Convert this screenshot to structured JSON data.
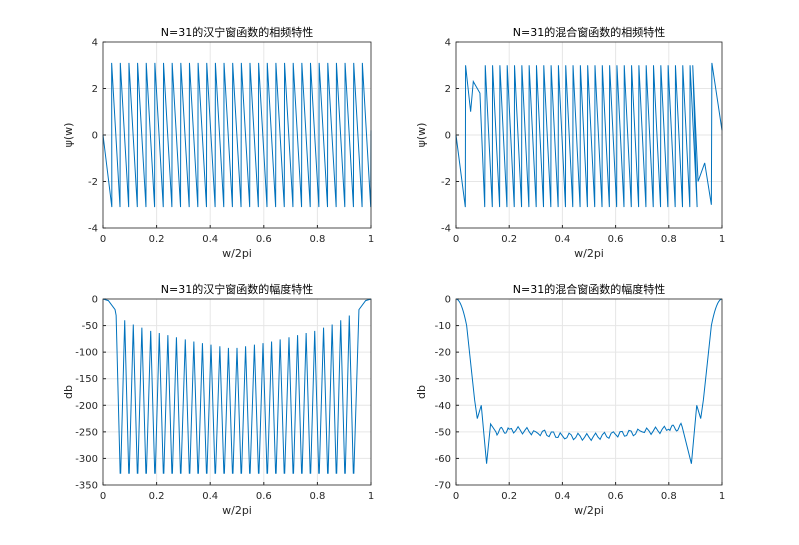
{
  "chart_data": [
    {
      "type": "line",
      "title": "N=31的汉宁窗函数的相频特性",
      "xlabel": "w/2pi",
      "ylabel": "ψ(w)",
      "xlim": [
        0,
        1
      ],
      "ylim": [
        -4,
        4
      ],
      "xticks": [
        "0",
        "0.2",
        "0.4",
        "0.6",
        "0.8",
        "1"
      ],
      "yticks": [
        "-4",
        "-2",
        "0",
        "2",
        "4"
      ],
      "grid": true,
      "series": [
        {
          "color": "#0072bd",
          "note_x": [
            0,
            0.033,
            0.065,
            0.097,
            0.129,
            0.161,
            0.194,
            0.226,
            0.258,
            0.29,
            0.323,
            0.355,
            0.387,
            0.419,
            0.452,
            0.484,
            0.516,
            0.548,
            0.581,
            0.613,
            0.645,
            0.677,
            0.71,
            0.742,
            0.774,
            0.806,
            0.839,
            0.871,
            0.903,
            0.935,
            0.968,
            1
          ],
          "y_peak": 3.1,
          "y_trough": -3.1
        }
      ]
    },
    {
      "type": "line",
      "title": "N=31的混合窗函数的相频特性",
      "xlabel": "w/2pi",
      "ylabel": "ψ(w)",
      "xlim": [
        0,
        1
      ],
      "ylim": [
        -4,
        4
      ],
      "xticks": [
        "0",
        "0.2",
        "0.4",
        "0.6",
        "0.8",
        "1"
      ],
      "yticks": [
        "-4",
        "-2",
        "0",
        "2",
        "4"
      ],
      "grid": true,
      "series": [
        {
          "color": "#0072bd",
          "y_peak": 3.0,
          "y_trough": -3.1
        }
      ]
    },
    {
      "type": "line",
      "title": "N=31的汉宁窗函数的幅度特性",
      "xlabel": "w/2pi",
      "ylabel": "db",
      "xlim": [
        0,
        1
      ],
      "ylim": [
        -350,
        0
      ],
      "xticks": [
        "0",
        "0.2",
        "0.4",
        "0.6",
        "0.8",
        "1"
      ],
      "yticks": [
        "0",
        "-50",
        "-100",
        "-150",
        "-200",
        "-250",
        "-300",
        "-350"
      ],
      "grid": true,
      "series": [
        {
          "color": "#0072bd",
          "null_x": [
            0.065,
            0.097,
            0.129,
            0.161,
            0.194,
            0.226,
            0.258,
            0.29,
            0.323,
            0.355,
            0.387,
            0.419,
            0.452,
            0.484,
            0.516,
            0.548,
            0.581,
            0.613,
            0.645,
            0.677,
            0.71,
            0.742,
            0.774,
            0.806,
            0.839,
            0.871,
            0.903,
            0.935
          ],
          "null_depth": -328,
          "sidelobe_peak": [
            -31,
            -40,
            -48,
            -54,
            -60,
            -64,
            -68,
            -72,
            -76,
            -80,
            -83,
            -86,
            -89,
            -92,
            -92,
            -89,
            -86,
            -83,
            -80,
            -76,
            -72,
            -68,
            -64,
            -60,
            -54,
            -48,
            -40,
            -31
          ]
        }
      ]
    },
    {
      "type": "line",
      "title": "N=31的混合窗函数的幅度特性",
      "xlabel": "w/2pi",
      "ylabel": "db",
      "xlim": [
        0,
        1
      ],
      "ylim": [
        -70,
        0
      ],
      "xticks": [
        "0",
        "0.2",
        "0.4",
        "0.6",
        "0.8",
        "1"
      ],
      "yticks": [
        "0",
        "-10",
        "-20",
        "-30",
        "-40",
        "-50",
        "-60",
        "-70"
      ],
      "grid": true,
      "series": [
        {
          "color": "#0072bd",
          "key_points": [
            [
              0,
              0
            ],
            [
              0.04,
              -10
            ],
            [
              0.07,
              -38
            ],
            [
              0.08,
              -45
            ],
            [
              0.095,
              -40
            ],
            [
              0.115,
              -62
            ],
            [
              0.13,
              -47
            ],
            [
              0.15,
              -50
            ],
            [
              0.2,
              -49
            ],
            [
              0.3,
              -50
            ],
            [
              0.4,
              -51.5
            ],
            [
              0.5,
              -52
            ],
            [
              0.6,
              -51
            ],
            [
              0.7,
              -50
            ],
            [
              0.8,
              -49
            ],
            [
              0.85,
              -48
            ],
            [
              0.885,
              -62
            ],
            [
              0.905,
              -40
            ],
            [
              0.92,
              -45
            ],
            [
              0.93,
              -38
            ],
            [
              0.96,
              -10
            ],
            [
              1,
              0
            ]
          ]
        }
      ]
    }
  ]
}
